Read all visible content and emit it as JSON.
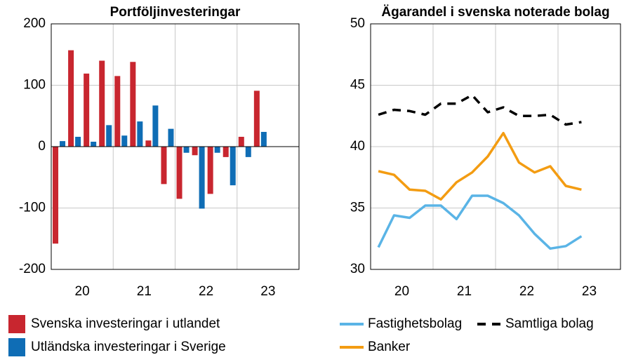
{
  "chart_data": [
    {
      "type": "bar",
      "title": "Portföljinvesteringar",
      "x": [
        2020.125,
        2020.375,
        2020.625,
        2020.875,
        2021.125,
        2021.375,
        2021.625,
        2021.875,
        2022.125,
        2022.375,
        2022.625,
        2022.875,
        2023.125,
        2023.375
      ],
      "series": [
        {
          "name": "Svenska investeringar i utlandet",
          "color": "#c8262f",
          "values": [
            -158,
            157,
            119,
            140,
            115,
            138,
            10,
            -61,
            -85,
            -14,
            -77,
            -17,
            16,
            91
          ]
        },
        {
          "name": "Utländska investeringar i Sverige",
          "color": "#0f6db5",
          "values": [
            9,
            16,
            8,
            35,
            18,
            41,
            67,
            29,
            -10,
            -101,
            -10,
            -63,
            -17,
            24
          ]
        }
      ],
      "xlim": [
        2020,
        2024
      ],
      "xticks": [
        {
          "value": 2020.5,
          "label": "20"
        },
        {
          "value": 2021.5,
          "label": "21"
        },
        {
          "value": 2022.5,
          "label": "22"
        },
        {
          "value": 2023.5,
          "label": "23"
        }
      ],
      "xgrid": [
        2021,
        2022,
        2023
      ],
      "ylim": [
        -200,
        200
      ],
      "yticks": [
        -200,
        -100,
        0,
        100,
        200
      ],
      "grid": true
    },
    {
      "type": "line",
      "title": "Ägarandel i svenska noterade bolag",
      "x": [
        2020.125,
        2020.375,
        2020.625,
        2020.875,
        2021.125,
        2021.375,
        2021.625,
        2021.875,
        2022.125,
        2022.375,
        2022.625,
        2022.875,
        2023.125,
        2023.375
      ],
      "series": [
        {
          "name": "Fastighetsbolag",
          "color": "#5ab4e6",
          "dash": false,
          "values": [
            31.8,
            34.4,
            34.2,
            35.2,
            35.2,
            34.1,
            36.0,
            36.0,
            35.4,
            34.4,
            32.9,
            31.7,
            31.9,
            32.7
          ]
        },
        {
          "name": "Samtliga bolag",
          "color": "#000000",
          "dash": true,
          "values": [
            42.6,
            43.0,
            42.9,
            42.6,
            43.5,
            43.5,
            44.2,
            42.8,
            43.2,
            42.5,
            42.5,
            42.6,
            41.8,
            42.0
          ]
        },
        {
          "name": "Banker",
          "color": "#f39c12",
          "dash": false,
          "values": [
            38.0,
            37.7,
            36.5,
            36.4,
            35.7,
            37.1,
            37.9,
            39.2,
            41.1,
            38.7,
            37.9,
            38.4,
            36.8,
            36.5
          ]
        }
      ],
      "xlim": [
        2020,
        2024
      ],
      "xticks": [
        {
          "value": 2020.5,
          "label": "20"
        },
        {
          "value": 2021.5,
          "label": "21"
        },
        {
          "value": 2022.5,
          "label": "22"
        },
        {
          "value": 2023.5,
          "label": "23"
        }
      ],
      "xgrid": [
        2021,
        2022,
        2023
      ],
      "ylim": [
        30,
        50
      ],
      "yticks": [
        30,
        35,
        40,
        45,
        50
      ],
      "grid": true
    }
  ]
}
